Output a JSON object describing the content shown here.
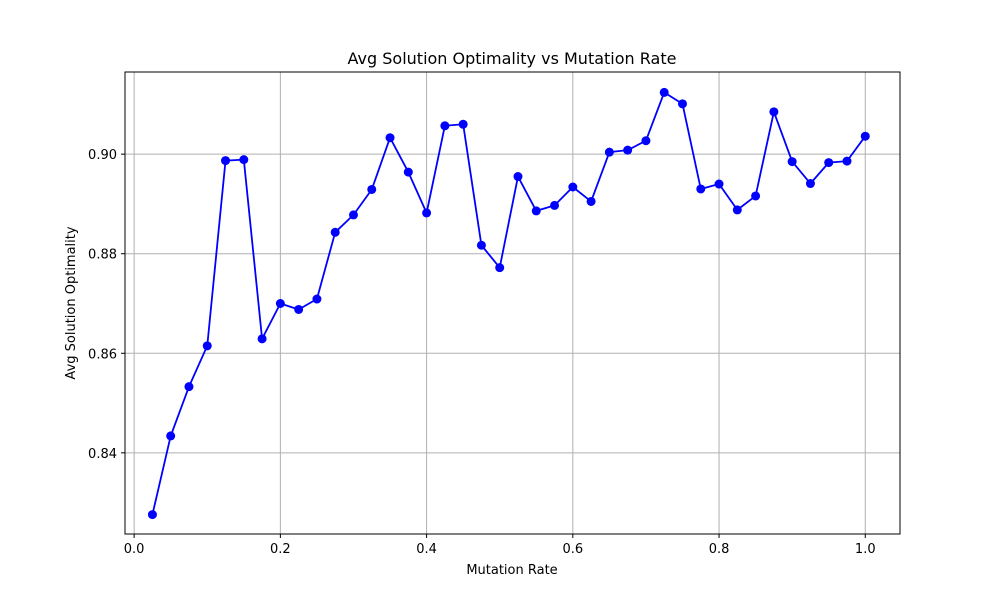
{
  "chart_data": {
    "type": "line",
    "title": "Avg Solution Optimality vs Mutation Rate",
    "xlabel": "Mutation Rate",
    "ylabel": "Avg Solution Optimality",
    "xlim": [
      -0.0125,
      1.0475
    ],
    "ylim": [
      0.8237,
      0.9165
    ],
    "xticks": [
      0.0,
      0.2,
      0.4,
      0.6,
      0.8,
      1.0
    ],
    "xtick_labels": [
      "0.0",
      "0.2",
      "0.4",
      "0.6",
      "0.8",
      "1.0"
    ],
    "yticks": [
      0.84,
      0.86,
      0.88,
      0.9
    ],
    "ytick_labels": [
      "0.84",
      "0.86",
      "0.88",
      "0.90"
    ],
    "grid": true,
    "series": [
      {
        "color": "#0000ff",
        "marker": "circle",
        "x": [
          0.025,
          0.05,
          0.075,
          0.1,
          0.125,
          0.15,
          0.175,
          0.2,
          0.225,
          0.25,
          0.275,
          0.3,
          0.325,
          0.35,
          0.375,
          0.4,
          0.425,
          0.45,
          0.475,
          0.5,
          0.525,
          0.55,
          0.575,
          0.6,
          0.625,
          0.65,
          0.675,
          0.7,
          0.725,
          0.75,
          0.775,
          0.8,
          0.825,
          0.85,
          0.875,
          0.9,
          0.925,
          0.95,
          0.975,
          1.0
        ],
        "y": [
          0.8276,
          0.8434,
          0.8533,
          0.8615,
          0.8987,
          0.8989,
          0.8629,
          0.87,
          0.8688,
          0.8709,
          0.8843,
          0.8878,
          0.8929,
          0.9033,
          0.8964,
          0.8882,
          0.9057,
          0.906,
          0.8817,
          0.8772,
          0.8955,
          0.8886,
          0.8897,
          0.8934,
          0.8905,
          0.9004,
          0.9008,
          0.9027,
          0.9124,
          0.9101,
          0.893,
          0.894,
          0.8888,
          0.8916,
          0.9085,
          0.8985,
          0.8941,
          0.8983,
          0.8986,
          0.9036
        ]
      }
    ]
  }
}
